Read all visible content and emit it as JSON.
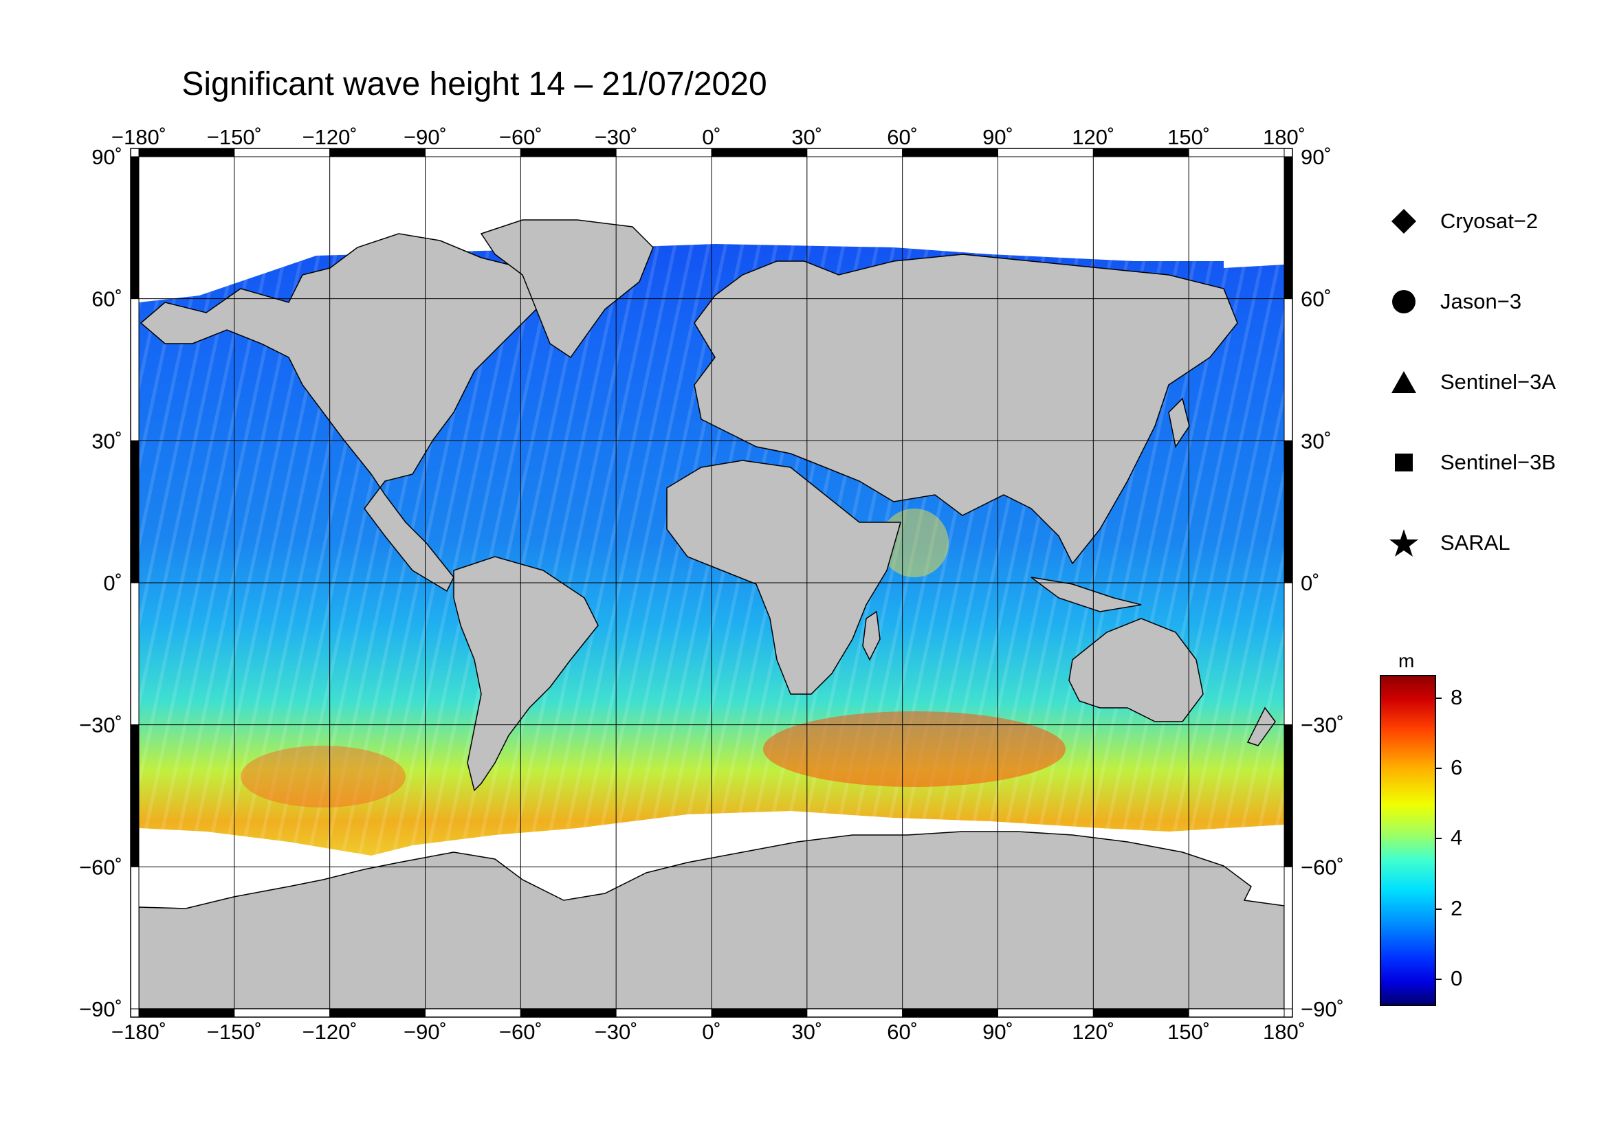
{
  "title": "Significant wave height 14 – 21/07/2020",
  "map": {
    "projection": "equirectangular",
    "lon_range": [
      -180,
      180
    ],
    "lat_range": [
      -90,
      90
    ],
    "lon_ticks": [
      "−180˚",
      "−150˚",
      "−120˚",
      "−90˚",
      "−60˚",
      "−30˚",
      "0˚",
      "30˚",
      "60˚",
      "90˚",
      "120˚",
      "150˚",
      "180˚"
    ],
    "lat_ticks_left": [
      "90˚",
      "60˚",
      "30˚",
      "0˚",
      "−30˚",
      "−60˚",
      "−90˚"
    ],
    "lat_ticks_right": [
      "90˚",
      "60˚",
      "30˚",
      "0˚",
      "−30˚",
      "−60˚",
      "−90˚"
    ],
    "land_color": "#c0c0c0",
    "sea_ice_color": "#ffffff",
    "grid": true
  },
  "legend": {
    "items": [
      {
        "label": "Cryosat−2",
        "icon": "diamond"
      },
      {
        "label": "Jason−3",
        "icon": "circle"
      },
      {
        "label": "Sentinel−3A",
        "icon": "triangle"
      },
      {
        "label": "Sentinel−3B",
        "icon": "square"
      },
      {
        "label": "SARAL",
        "icon": "star"
      }
    ]
  },
  "colorbar": {
    "unit": "m",
    "range": [
      -0.7,
      8.6
    ],
    "ticks": [
      "8",
      "6",
      "4",
      "2",
      "0"
    ],
    "tick_values": [
      8,
      6,
      4,
      2,
      0
    ],
    "colormap": "jet"
  }
}
